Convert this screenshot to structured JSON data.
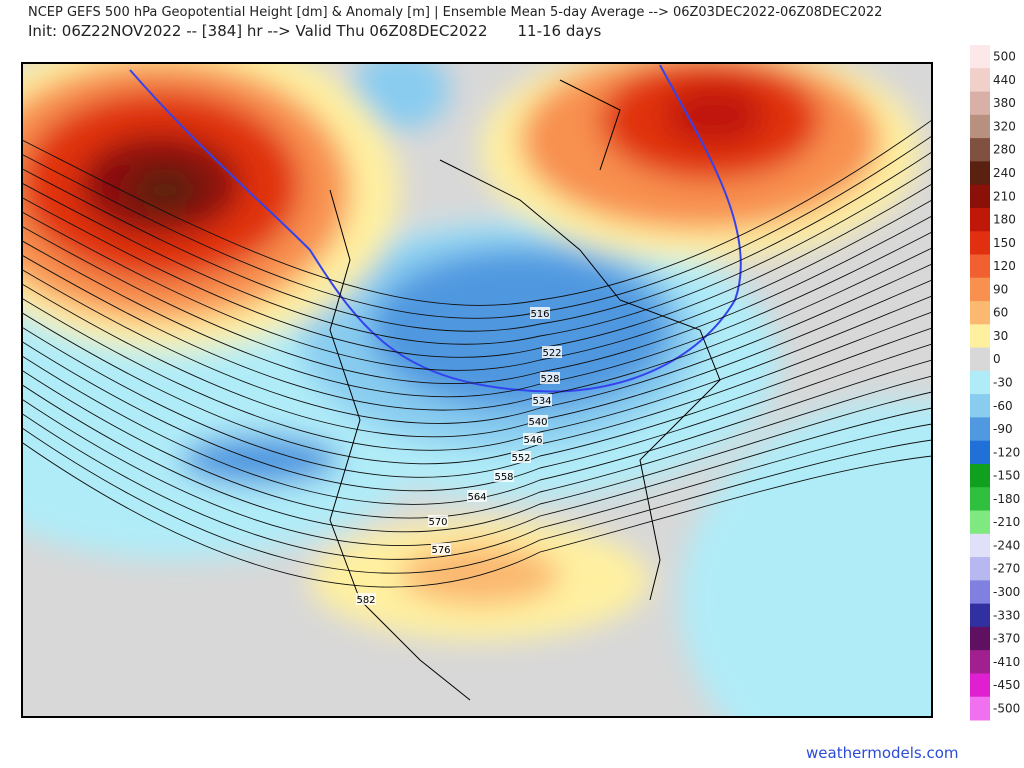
{
  "header": {
    "title": "NCEP GEFS 500 hPa Geopotential Height [dm] & Anomaly [m] | Ensemble Mean 5-day Average --> 06Z03DEC2022-06Z08DEC2022",
    "init": "Init: 06Z22NOV2022 -- [384] hr --> Valid Thu 06Z08DEC2022",
    "range": "11-16 days"
  },
  "colorbar": {
    "levels": [
      {
        "label": "500",
        "color": "#fce8e8"
      },
      {
        "label": "440",
        "color": "#f0d0c8"
      },
      {
        "label": "380",
        "color": "#d8b0a8"
      },
      {
        "label": "320",
        "color": "#b89080"
      },
      {
        "label": "280",
        "color": "#805040"
      },
      {
        "label": "240",
        "color": "#5a2010"
      },
      {
        "label": "210",
        "color": "#8a1008"
      },
      {
        "label": "180",
        "color": "#c01808"
      },
      {
        "label": "150",
        "color": "#e03010"
      },
      {
        "label": "120",
        "color": "#f06030"
      },
      {
        "label": "90",
        "color": "#f89050"
      },
      {
        "label": "60",
        "color": "#fbb870"
      },
      {
        "label": "30",
        "color": "#fff0a0"
      },
      {
        "label": "0",
        "color": "#d8d8d8"
      },
      {
        "label": "-30",
        "color": "#b0ecf8"
      },
      {
        "label": "-60",
        "color": "#88ccf0"
      },
      {
        "label": "-90",
        "color": "#5098e0"
      },
      {
        "label": "-120",
        "color": "#2070d8"
      },
      {
        "label": "-150",
        "color": "#10a020"
      },
      {
        "label": "-180",
        "color": "#30c040"
      },
      {
        "label": "-210",
        "color": "#80e880"
      },
      {
        "label": "-240",
        "color": "#e0e0f8"
      },
      {
        "label": "-270",
        "color": "#b8b8f0"
      },
      {
        "label": "-300",
        "color": "#8080e0"
      },
      {
        "label": "-330",
        "color": "#3030a0"
      },
      {
        "label": "-370",
        "color": "#601060"
      },
      {
        "label": "-410",
        "color": "#a02090"
      },
      {
        "label": "-450",
        "color": "#e020d0"
      },
      {
        "label": "-500",
        "color": "#f070f0"
      }
    ]
  },
  "contour_labels": [
    "516",
    "522",
    "528",
    "534",
    "540",
    "546",
    "552",
    "558",
    "564",
    "570",
    "576",
    "582"
  ],
  "footer": {
    "credit": "weathermodels.com"
  }
}
